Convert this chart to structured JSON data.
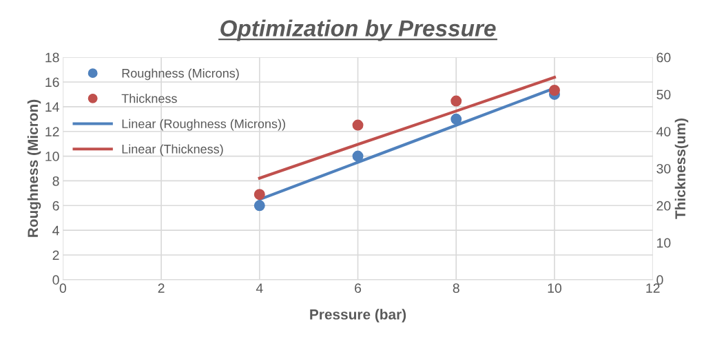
{
  "chart_data": {
    "type": "scatter",
    "title": "Optimization by Pressure",
    "xlabel": "Pressure (bar)",
    "ylabel": "Roughness (Micron)",
    "y2label": "Thickness(um)",
    "x": [
      4,
      6,
      8,
      10
    ],
    "series": [
      {
        "name": "Roughness (Microns)",
        "color": "#4f81bd",
        "marker": "circle",
        "values": [
          6,
          10,
          13,
          15
        ]
      },
      {
        "name": "Thickness",
        "color": "#c0504d",
        "marker": "circle",
        "axis": "y2",
        "values": [
          23,
          41.7,
          48.2,
          51.1
        ]
      },
      {
        "name": "Linear (Roughness (Microns))",
        "color": "#4f81bd",
        "type": "line",
        "marker": "none",
        "values": [
          6.5,
          9.5,
          12.5,
          15.5
        ]
      },
      {
        "name": "Linear (Thickness)",
        "color": "#c0504d",
        "type": "line",
        "marker": "none",
        "axis": "y2",
        "values": [
          27.4,
          36.5,
          45.5,
          54.6
        ]
      }
    ],
    "xlim": [
      0,
      12
    ],
    "xticks": [
      0,
      2,
      4,
      6,
      8,
      10,
      12
    ],
    "ylim": [
      0,
      18
    ],
    "yticks": [
      0,
      2,
      4,
      6,
      8,
      10,
      12,
      14,
      16,
      18
    ],
    "y2lim": [
      0,
      60
    ],
    "y2ticks": [
      0,
      10,
      20,
      30,
      40,
      50,
      60
    ],
    "grid": true,
    "legend": "top left",
    "line_style": "solid"
  }
}
